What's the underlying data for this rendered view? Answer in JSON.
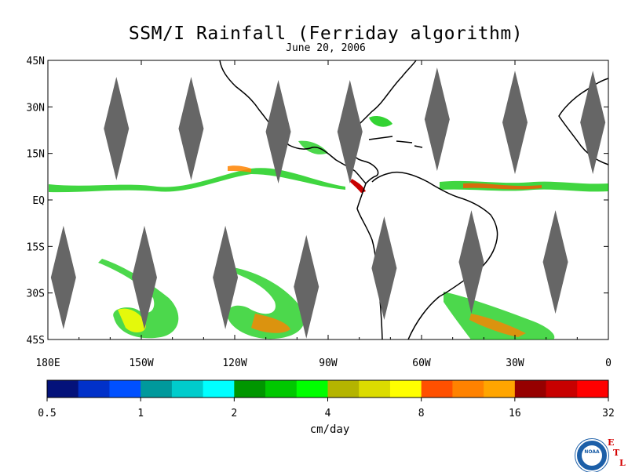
{
  "title": "SSM/I Rainfall (Ferriday algorithm)",
  "subtitle": "June 20, 2006",
  "lat_labels": [
    "45N",
    "30N",
    "15N",
    "EQ",
    "15S",
    "30S",
    "45S"
  ],
  "lon_labels": [
    "180E",
    "150W",
    "120W",
    "90W",
    "60W",
    "30W",
    "0"
  ],
  "colorbar": {
    "unit": "cm/day",
    "tick_labels": [
      "0.5",
      "1",
      "2",
      "4",
      "8",
      "16",
      "32"
    ],
    "colors": [
      "#04127a",
      "#0131c9",
      "#0050ff",
      "#00999c",
      "#00cccc",
      "#00ffff",
      "#009600",
      "#00c800",
      "#00ff00",
      "#b4b400",
      "#dcdc00",
      "#ffff00",
      "#ff5000",
      "#ff8200",
      "#ffa500",
      "#960000",
      "#c80000",
      "#ff0000"
    ]
  },
  "logo": {
    "badge_text": "NOAA",
    "letters": [
      "E",
      "T",
      "L"
    ]
  },
  "colors": {
    "land": "#000000",
    "swath_gap": "#666666"
  },
  "geo_extent": {
    "lon_range": [
      -180,
      0
    ],
    "lat_range": [
      -45,
      45
    ]
  }
}
